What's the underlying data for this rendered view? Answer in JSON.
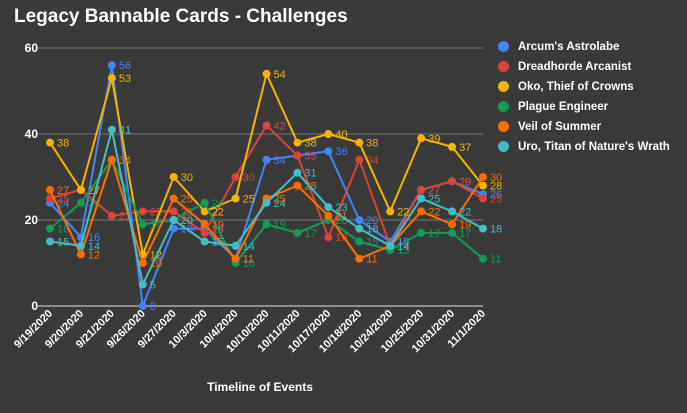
{
  "chart_data": {
    "type": "line",
    "title": "Legacy Bannable Cards - Challenges",
    "xlabel": "Timeline of Events",
    "ylabel": "",
    "ylim": [
      0,
      60
    ],
    "yticks": [
      0,
      20,
      40,
      60
    ],
    "grid": true,
    "legend_position": "right",
    "x": [
      "9/19/2020",
      "9/20/2020",
      "9/21/2020",
      "9/26/2020",
      "9/27/2020",
      "10/3/2020",
      "10/4/2020",
      "10/10/2020",
      "10/11/2020",
      "10/17/2020",
      "10/18/2020",
      "10/24/2020",
      "10/25/2020",
      "10/31/2020",
      "11/1/2020"
    ],
    "series": [
      {
        "name": "Arcum's Astrolabe",
        "color": "#4285f4",
        "values": [
          24,
          16,
          56,
          0,
          18,
          18,
          11,
          34,
          35,
          36,
          20,
          15,
          27,
          29,
          26
        ]
      },
      {
        "name": "Dreadhorde Arcanist",
        "color": "#db4437",
        "values": [
          25,
          27,
          21,
          22,
          22,
          17,
          30,
          42,
          35,
          16,
          34,
          14,
          27,
          29,
          25
        ]
      },
      {
        "name": "Oko, Thief of Crowns",
        "color": "#f4b400",
        "values": [
          38,
          27,
          53,
          12,
          30,
          22,
          25,
          54,
          38,
          40,
          38,
          22,
          39,
          37,
          28
        ]
      },
      {
        "name": "Plague Engineer",
        "color": "#0f9d58",
        "values": [
          18,
          24,
          34,
          19,
          20,
          24,
          10,
          19,
          17,
          20,
          15,
          13,
          17,
          17,
          11
        ]
      },
      {
        "name": "Veil of Summer",
        "color": "#ff6d00",
        "values": [
          27,
          12,
          34,
          10,
          25,
          19,
          11,
          25,
          28,
          21,
          11,
          14,
          22,
          19,
          30
        ]
      },
      {
        "name": "Uro, Titan of Nature's Wrath",
        "color": "#46bdc6",
        "values": [
          15,
          14,
          41,
          5,
          20,
          15,
          14,
          24,
          31,
          23,
          18,
          14,
          25,
          22,
          18
        ]
      }
    ]
  }
}
